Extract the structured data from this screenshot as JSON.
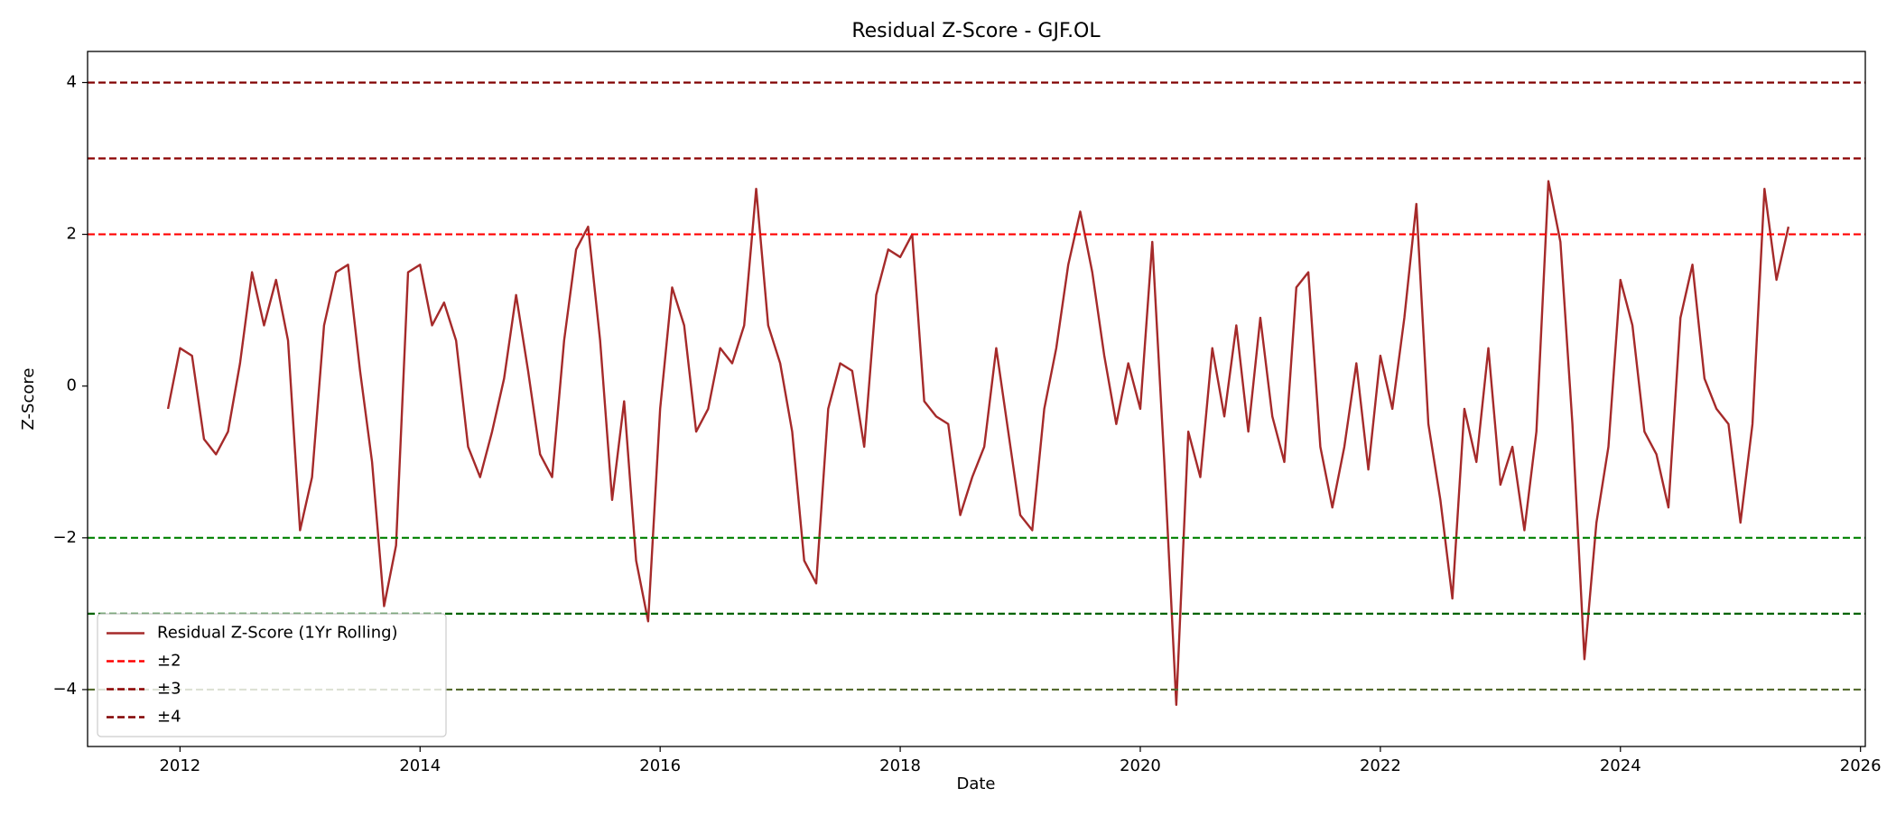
{
  "chart_data": {
    "type": "line",
    "title": "Residual Z-Score - GJF.OL",
    "x_label": "Date",
    "y_label": "Z-Score",
    "xlim": [
      2011.23,
      2026.04
    ],
    "ylim": [
      -4.75,
      4.41
    ],
    "xticks": [
      2012,
      2014,
      2016,
      2018,
      2020,
      2022,
      2024,
      2026
    ],
    "yticks": [
      {
        "value": -4,
        "label": "−4"
      },
      {
        "value": -2,
        "label": "−2"
      },
      0,
      2,
      4
    ],
    "legend": "lower left",
    "x": [
      2011.9,
      2012.0,
      2012.1,
      2012.2,
      2012.3,
      2012.4,
      2012.5,
      2012.6,
      2012.7,
      2012.8,
      2012.9,
      2013.0,
      2013.1,
      2013.2,
      2013.3,
      2013.4,
      2013.5,
      2013.6,
      2013.7,
      2013.8,
      2013.9,
      2014.0,
      2014.1,
      2014.2,
      2014.3,
      2014.4,
      2014.5,
      2014.6,
      2014.7,
      2014.8,
      2014.9,
      2015.0,
      2015.1,
      2015.2,
      2015.3,
      2015.4,
      2015.5,
      2015.6,
      2015.7,
      2015.8,
      2015.9,
      2016.0,
      2016.1,
      2016.2,
      2016.3,
      2016.4,
      2016.5,
      2016.6,
      2016.7,
      2016.8,
      2016.9,
      2017.0,
      2017.1,
      2017.2,
      2017.3,
      2017.4,
      2017.5,
      2017.6,
      2017.7,
      2017.8,
      2017.9,
      2018.0,
      2018.1,
      2018.2,
      2018.3,
      2018.4,
      2018.5,
      2018.6,
      2018.7,
      2018.8,
      2018.9,
      2019.0,
      2019.1,
      2019.2,
      2019.3,
      2019.4,
      2019.5,
      2019.6,
      2019.7,
      2019.8,
      2019.9,
      2020.0,
      2020.1,
      2020.2,
      2020.3,
      2020.4,
      2020.5,
      2020.6,
      2020.7,
      2020.8,
      2020.9,
      2021.0,
      2021.1,
      2021.2,
      2021.3,
      2021.4,
      2021.5,
      2021.6,
      2021.7,
      2021.8,
      2021.9,
      2022.0,
      2022.1,
      2022.2,
      2022.3,
      2022.4,
      2022.5,
      2022.6,
      2022.7,
      2022.8,
      2022.9,
      2023.0,
      2023.1,
      2023.2,
      2023.3,
      2023.4,
      2023.5,
      2023.6,
      2023.7,
      2023.8,
      2023.9,
      2024.0,
      2024.1,
      2024.2,
      2024.3,
      2024.4,
      2024.5,
      2024.6,
      2024.7,
      2024.8,
      2024.9,
      2025.0,
      2025.1,
      2025.2,
      2025.3,
      2025.4
    ],
    "series": [
      {
        "name": "Residual Z-Score (1Yr Rolling)",
        "color": "#a52a2a",
        "values": [
          -0.3,
          0.5,
          0.4,
          -0.7,
          -0.9,
          -0.6,
          0.3,
          1.5,
          0.8,
          1.4,
          0.6,
          -1.9,
          -1.2,
          0.8,
          1.5,
          1.6,
          0.2,
          -1.0,
          -2.9,
          -2.1,
          1.5,
          1.6,
          0.8,
          1.1,
          0.6,
          -0.8,
          -1.2,
          -0.6,
          0.1,
          1.2,
          0.2,
          -0.9,
          -1.2,
          0.6,
          1.8,
          2.1,
          0.6,
          -1.5,
          -0.2,
          -2.3,
          -3.1,
          -0.3,
          1.3,
          0.8,
          -0.6,
          -0.3,
          0.5,
          0.3,
          0.8,
          2.6,
          0.8,
          0.3,
          -0.6,
          -2.3,
          -2.6,
          -0.3,
          0.3,
          0.2,
          -0.8,
          1.2,
          1.8,
          1.7,
          2.0,
          -0.2,
          -0.4,
          -0.5,
          -1.7,
          -1.2,
          -0.8,
          0.5,
          -0.6,
          -1.7,
          -1.9,
          -0.3,
          0.5,
          1.6,
          2.3,
          1.5,
          0.4,
          -0.5,
          0.3,
          -0.3,
          1.9,
          -1.0,
          -4.2,
          -0.6,
          -1.2,
          0.5,
          -0.4,
          0.8,
          -0.6,
          0.9,
          -0.4,
          -1.0,
          1.3,
          1.5,
          -0.8,
          -1.6,
          -0.8,
          0.3,
          -1.1,
          0.4,
          -0.3,
          0.9,
          2.4,
          -0.5,
          -1.5,
          -2.8,
          -0.3,
          -1.0,
          0.5,
          -1.3,
          -0.8,
          -1.9,
          -0.6,
          2.7,
          1.9,
          -0.5,
          -3.6,
          -1.8,
          -0.8,
          1.4,
          0.8,
          -0.6,
          -0.9,
          -1.6,
          0.9,
          1.6,
          0.1,
          -0.3,
          -0.5,
          -1.8,
          -0.5,
          2.6,
          1.4,
          2.1
        ]
      }
    ],
    "reference_lines": [
      {
        "name": "±2",
        "values": [
          2,
          -2
        ],
        "colors": [
          "#ff0000",
          "#008000"
        ]
      },
      {
        "name": "±3",
        "values": [
          3,
          -3
        ],
        "colors": [
          "#8b0000",
          "#006400"
        ]
      },
      {
        "name": "±4",
        "values": [
          4,
          -4
        ],
        "colors": [
          "#800000",
          "#556b2f"
        ]
      }
    ]
  }
}
